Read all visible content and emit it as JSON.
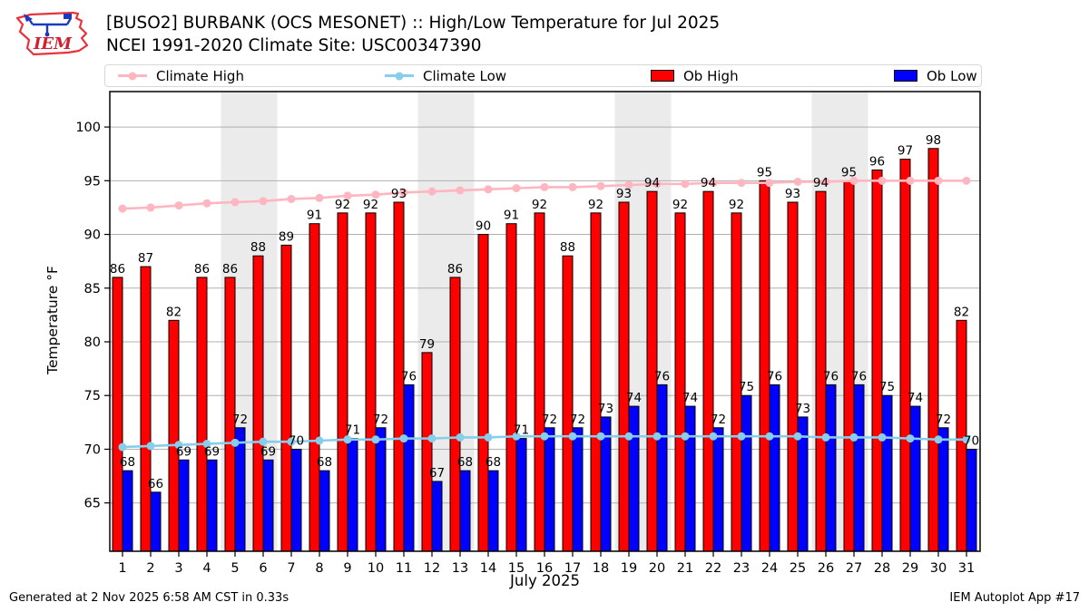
{
  "header": {
    "title_line1": "[BUSO2] BURBANK (OCS MESONET) :: High/Low Temperature for Jul 2025",
    "title_line2": "NCEI 1991-2020 Climate Site: USC00347390",
    "logo_text": "IEM"
  },
  "legend": {
    "items": [
      {
        "label": "Climate High",
        "kind": "line",
        "color": "#ffb6c1"
      },
      {
        "label": "Climate Low",
        "kind": "line",
        "color": "#87ceeb"
      },
      {
        "label": "Ob High",
        "kind": "patch",
        "color": "#ff0000"
      },
      {
        "label": "Ob Low",
        "kind": "patch",
        "color": "#0000ff"
      }
    ]
  },
  "footer": {
    "left": "Generated at 2 Nov 2025 6:58 AM CST in 0.33s",
    "right": "IEM Autoplot App #17"
  },
  "chart_data": {
    "type": "bar",
    "title": "[BUSO2] BURBANK (OCS MESONET) :: High/Low Temperature for Jul 2025",
    "subtitle": "NCEI 1991-2020 Climate Site: USC00347390",
    "xlabel": "July 2025",
    "ylabel": "Temperature °F",
    "x": [
      1,
      2,
      3,
      4,
      5,
      6,
      7,
      8,
      9,
      10,
      11,
      12,
      13,
      14,
      15,
      16,
      17,
      18,
      19,
      20,
      21,
      22,
      23,
      24,
      25,
      26,
      27,
      28,
      29,
      30,
      31
    ],
    "series": [
      {
        "name": "Climate High",
        "type": "line",
        "color": "#ffb6c1",
        "values": [
          92.4,
          92.5,
          92.7,
          92.9,
          93.0,
          93.1,
          93.3,
          93.4,
          93.6,
          93.7,
          93.9,
          94.0,
          94.1,
          94.2,
          94.3,
          94.4,
          94.4,
          94.5,
          94.6,
          94.7,
          94.7,
          94.8,
          94.8,
          94.8,
          94.9,
          94.9,
          95.0,
          95.0,
          95.0,
          95.0,
          95.0
        ]
      },
      {
        "name": "Climate Low",
        "type": "line",
        "color": "#87ceeb",
        "values": [
          70.2,
          70.3,
          70.4,
          70.5,
          70.6,
          70.7,
          70.7,
          70.8,
          70.9,
          70.9,
          71.0,
          71.0,
          71.1,
          71.1,
          71.2,
          71.2,
          71.2,
          71.2,
          71.2,
          71.2,
          71.2,
          71.2,
          71.2,
          71.2,
          71.2,
          71.1,
          71.1,
          71.1,
          71.0,
          70.9,
          70.9
        ]
      },
      {
        "name": "Ob High",
        "type": "bar",
        "color": "#ff0000",
        "labeled": true,
        "values": [
          86,
          87,
          82,
          86,
          86,
          88,
          89,
          91,
          92,
          92,
          93,
          79,
          86,
          90,
          91,
          92,
          88,
          92,
          93,
          94,
          92,
          94,
          92,
          95,
          93,
          94,
          95,
          96,
          97,
          98,
          82
        ]
      },
      {
        "name": "Ob Low",
        "type": "bar",
        "color": "#0000ff",
        "labeled": true,
        "values": [
          68,
          66,
          69,
          69,
          72,
          69,
          70,
          68,
          71,
          72,
          76,
          67,
          68,
          68,
          71,
          72,
          72,
          73,
          74,
          76,
          74,
          72,
          75,
          76,
          73,
          76,
          76,
          75,
          74,
          72,
          70
        ]
      }
    ],
    "yticks": [
      65,
      70,
      75,
      80,
      85,
      90,
      95,
      100
    ],
    "ylim": [
      60.5,
      103.3
    ],
    "grid": true,
    "grid_color": "#b0b0b0",
    "weekend_bands": [
      [
        5,
        6
      ],
      [
        12,
        13
      ],
      [
        19,
        20
      ],
      [
        26,
        27
      ]
    ],
    "band_color": "#ebebeb",
    "legend_position": "top"
  }
}
